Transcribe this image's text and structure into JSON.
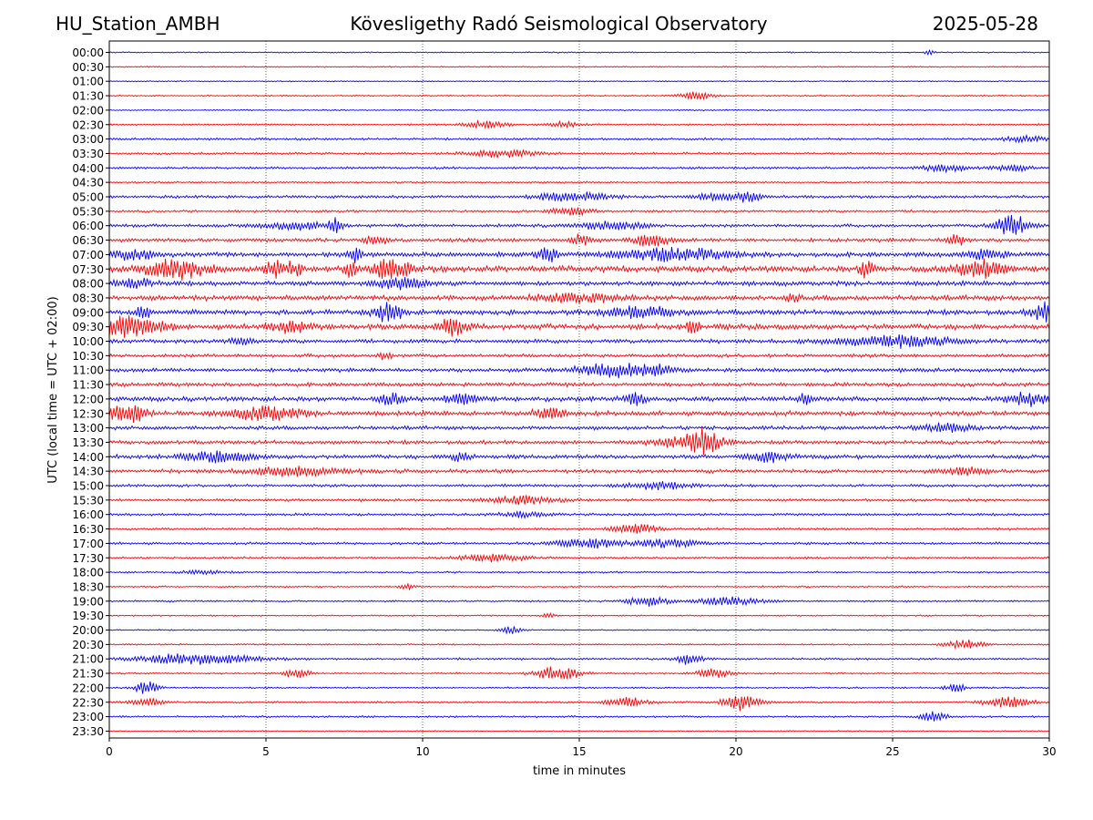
{
  "header": {
    "station": "HU_Station_AMBH",
    "title": "Kövesligethy Radó Seismological Observatory",
    "date": "2025-05-28"
  },
  "chart_data": {
    "type": "line",
    "title": "Kövesligethy Radó Seismological Observatory",
    "xlabel": "time in minutes",
    "ylabel": "UTC (local time = UTC + 02:00)",
    "xlim": [
      0,
      30
    ],
    "x_ticks": [
      "0",
      "5",
      "10",
      "15",
      "20",
      "25",
      "30"
    ],
    "grid": "vertical dotted at every 5 minutes",
    "colors": [
      "#0000ff",
      "#ff0000"
    ],
    "row_labels": [
      "00:00",
      "00:30",
      "01:00",
      "01:30",
      "02:00",
      "02:30",
      "03:00",
      "03:30",
      "04:00",
      "04:30",
      "05:00",
      "05:30",
      "06:00",
      "06:30",
      "07:00",
      "07:30",
      "08:00",
      "08:30",
      "09:00",
      "09:30",
      "10:00",
      "10:30",
      "11:00",
      "11:30",
      "12:00",
      "12:30",
      "13:00",
      "13:30",
      "14:00",
      "14:30",
      "15:00",
      "15:30",
      "16:00",
      "16:30",
      "17:00",
      "17:30",
      "18:00",
      "18:30",
      "19:00",
      "19:30",
      "20:00",
      "20:30",
      "21:00",
      "21:30",
      "22:00",
      "22:30",
      "23:00",
      "23:30"
    ],
    "noise_level": [
      0.8,
      0.8,
      0.7,
      0.9,
      0.8,
      1.1,
      1.4,
      1.4,
      1.5,
      1.2,
      1.8,
      1.5,
      2.0,
      2.4,
      3.0,
      3.8,
      3.0,
      3.2,
      3.2,
      3.5,
      2.5,
      2.2,
      2.5,
      2.4,
      3.0,
      3.0,
      2.4,
      2.4,
      2.6,
      2.4,
      1.8,
      1.7,
      1.6,
      1.5,
      1.6,
      1.3,
      1.1,
      1.1,
      1.2,
      0.9,
      0.8,
      1.0,
      1.3,
      1.0,
      1.0,
      1.2,
      1.2,
      0.8
    ],
    "events": [
      {
        "row": 0,
        "t": 26.2,
        "amp": 3,
        "dur": 0.2
      },
      {
        "row": 3,
        "t": 18.7,
        "amp": 4,
        "dur": 0.8
      },
      {
        "row": 5,
        "t": 12.0,
        "amp": 3.5,
        "dur": 1.0
      },
      {
        "row": 5,
        "t": 14.5,
        "amp": 3,
        "dur": 0.8
      },
      {
        "row": 6,
        "t": 29.2,
        "amp": 3,
        "dur": 1.0
      },
      {
        "row": 7,
        "t": 12.5,
        "amp": 4,
        "dur": 1.5
      },
      {
        "row": 8,
        "t": 26.7,
        "amp": 4,
        "dur": 1.0
      },
      {
        "row": 8,
        "t": 28.8,
        "amp": 3.5,
        "dur": 0.8
      },
      {
        "row": 10,
        "t": 14.8,
        "amp": 5,
        "dur": 1.5
      },
      {
        "row": 10,
        "t": 19.5,
        "amp": 4,
        "dur": 1.2
      },
      {
        "row": 10,
        "t": 20.4,
        "amp": 5,
        "dur": 0.5
      },
      {
        "row": 11,
        "t": 14.8,
        "amp": 4,
        "dur": 1.0
      },
      {
        "row": 12,
        "t": 5.8,
        "amp": 4,
        "dur": 1.5
      },
      {
        "row": 12,
        "t": 7.2,
        "amp": 8,
        "dur": 0.3
      },
      {
        "row": 12,
        "t": 16.0,
        "amp": 4,
        "dur": 1.5
      },
      {
        "row": 12,
        "t": 28.8,
        "amp": 12,
        "dur": 0.8
      },
      {
        "row": 13,
        "t": 8.5,
        "amp": 5,
        "dur": 0.5
      },
      {
        "row": 13,
        "t": 15.0,
        "amp": 6,
        "dur": 0.5
      },
      {
        "row": 13,
        "t": 17.3,
        "amp": 6,
        "dur": 0.8
      },
      {
        "row": 13,
        "t": 27.0,
        "amp": 7,
        "dur": 0.4
      },
      {
        "row": 14,
        "t": 0.8,
        "amp": 5,
        "dur": 1.0
      },
      {
        "row": 14,
        "t": 7.8,
        "amp": 9,
        "dur": 0.3
      },
      {
        "row": 14,
        "t": 14.0,
        "amp": 9,
        "dur": 0.4
      },
      {
        "row": 14,
        "t": 18.0,
        "amp": 6,
        "dur": 2.5
      },
      {
        "row": 14,
        "t": 28.0,
        "amp": 5,
        "dur": 0.8
      },
      {
        "row": 15,
        "t": 2.2,
        "amp": 9,
        "dur": 1.5
      },
      {
        "row": 15,
        "t": 5.3,
        "amp": 10,
        "dur": 0.4
      },
      {
        "row": 15,
        "t": 5.9,
        "amp": 7,
        "dur": 0.4
      },
      {
        "row": 15,
        "t": 7.7,
        "amp": 8,
        "dur": 0.3
      },
      {
        "row": 15,
        "t": 9.0,
        "amp": 12,
        "dur": 0.8
      },
      {
        "row": 15,
        "t": 24.2,
        "amp": 12,
        "dur": 0.3
      },
      {
        "row": 15,
        "t": 27.8,
        "amp": 9,
        "dur": 1.0
      },
      {
        "row": 16,
        "t": 9.3,
        "amp": 6,
        "dur": 1.0
      },
      {
        "row": 16,
        "t": 0.8,
        "amp": 5,
        "dur": 0.8
      },
      {
        "row": 17,
        "t": 15.0,
        "amp": 4,
        "dur": 2.0
      },
      {
        "row": 17,
        "t": 21.8,
        "amp": 4,
        "dur": 0.3
      },
      {
        "row": 18,
        "t": 1.1,
        "amp": 8,
        "dur": 0.3
      },
      {
        "row": 18,
        "t": 8.9,
        "amp": 10,
        "dur": 0.6
      },
      {
        "row": 18,
        "t": 17.0,
        "amp": 6,
        "dur": 1.5
      },
      {
        "row": 18,
        "t": 29.8,
        "amp": 10,
        "dur": 0.5
      },
      {
        "row": 19,
        "t": 0.6,
        "amp": 12,
        "dur": 1.5
      },
      {
        "row": 19,
        "t": 5.8,
        "amp": 6,
        "dur": 0.8
      },
      {
        "row": 19,
        "t": 11.0,
        "amp": 10,
        "dur": 0.6
      },
      {
        "row": 19,
        "t": 18.6,
        "amp": 6,
        "dur": 0.3
      },
      {
        "row": 20,
        "t": 4.2,
        "amp": 4,
        "dur": 0.6
      },
      {
        "row": 20,
        "t": 25.0,
        "amp": 6,
        "dur": 2.5
      },
      {
        "row": 21,
        "t": 8.8,
        "amp": 4,
        "dur": 0.3
      },
      {
        "row": 22,
        "t": 16.0,
        "amp": 7,
        "dur": 1.5
      },
      {
        "row": 22,
        "t": 17.5,
        "amp": 5,
        "dur": 1.0
      },
      {
        "row": 24,
        "t": 9.0,
        "amp": 6,
        "dur": 0.5
      },
      {
        "row": 24,
        "t": 11.3,
        "amp": 5,
        "dur": 0.8
      },
      {
        "row": 24,
        "t": 16.8,
        "amp": 7,
        "dur": 0.5
      },
      {
        "row": 24,
        "t": 22.2,
        "amp": 6,
        "dur": 0.3
      },
      {
        "row": 24,
        "t": 29.3,
        "amp": 7,
        "dur": 1.0
      },
      {
        "row": 25,
        "t": 0.6,
        "amp": 10,
        "dur": 0.8
      },
      {
        "row": 25,
        "t": 5.0,
        "amp": 7,
        "dur": 1.5
      },
      {
        "row": 25,
        "t": 14.0,
        "amp": 5,
        "dur": 0.8
      },
      {
        "row": 26,
        "t": 26.7,
        "amp": 5,
        "dur": 1.0
      },
      {
        "row": 27,
        "t": 19.0,
        "amp": 11,
        "dur": 0.6
      },
      {
        "row": 27,
        "t": 18.5,
        "amp": 6,
        "dur": 1.5
      },
      {
        "row": 28,
        "t": 3.5,
        "amp": 5,
        "dur": 1.5
      },
      {
        "row": 28,
        "t": 11.2,
        "amp": 5,
        "dur": 0.5
      },
      {
        "row": 28,
        "t": 21.0,
        "amp": 5,
        "dur": 1.0
      },
      {
        "row": 29,
        "t": 6.0,
        "amp": 5,
        "dur": 2.0
      },
      {
        "row": 29,
        "t": 27.3,
        "amp": 4,
        "dur": 1.0
      },
      {
        "row": 30,
        "t": 17.5,
        "amp": 4,
        "dur": 1.5
      },
      {
        "row": 31,
        "t": 13.2,
        "amp": 4,
        "dur": 1.5
      },
      {
        "row": 32,
        "t": 13.2,
        "amp": 3,
        "dur": 1.0
      },
      {
        "row": 33,
        "t": 16.8,
        "amp": 5,
        "dur": 1.0
      },
      {
        "row": 34,
        "t": 15.3,
        "amp": 5,
        "dur": 1.5
      },
      {
        "row": 34,
        "t": 17.8,
        "amp": 4,
        "dur": 1.5
      },
      {
        "row": 35,
        "t": 12.3,
        "amp": 4,
        "dur": 1.5
      },
      {
        "row": 36,
        "t": 3.0,
        "amp": 2,
        "dur": 1.0
      },
      {
        "row": 37,
        "t": 9.5,
        "amp": 3,
        "dur": 0.3
      },
      {
        "row": 38,
        "t": 17.2,
        "amp": 5,
        "dur": 1.0
      },
      {
        "row": 38,
        "t": 19.8,
        "amp": 4,
        "dur": 1.5
      },
      {
        "row": 39,
        "t": 14.0,
        "amp": 3,
        "dur": 0.3
      },
      {
        "row": 40,
        "t": 12.8,
        "amp": 4,
        "dur": 0.5
      },
      {
        "row": 41,
        "t": 27.3,
        "amp": 5,
        "dur": 0.8
      },
      {
        "row": 42,
        "t": 2.8,
        "amp": 6,
        "dur": 2.5
      },
      {
        "row": 42,
        "t": 18.5,
        "amp": 6,
        "dur": 0.6
      },
      {
        "row": 43,
        "t": 6.0,
        "amp": 6,
        "dur": 0.5
      },
      {
        "row": 43,
        "t": 14.3,
        "amp": 8,
        "dur": 1.0
      },
      {
        "row": 43,
        "t": 19.3,
        "amp": 5,
        "dur": 0.8
      },
      {
        "row": 44,
        "t": 1.2,
        "amp": 8,
        "dur": 0.5
      },
      {
        "row": 44,
        "t": 27.0,
        "amp": 4,
        "dur": 0.5
      },
      {
        "row": 45,
        "t": 1.2,
        "amp": 4,
        "dur": 0.8
      },
      {
        "row": 45,
        "t": 16.5,
        "amp": 5,
        "dur": 1.0
      },
      {
        "row": 45,
        "t": 20.2,
        "amp": 9,
        "dur": 0.8
      },
      {
        "row": 45,
        "t": 28.7,
        "amp": 6,
        "dur": 1.0
      },
      {
        "row": 46,
        "t": 26.3,
        "amp": 5,
        "dur": 0.6
      }
    ]
  }
}
